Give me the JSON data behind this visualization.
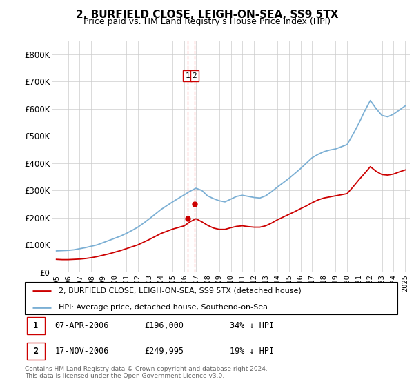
{
  "title": "2, BURFIELD CLOSE, LEIGH-ON-SEA, SS9 5TX",
  "subtitle": "Price paid vs. HM Land Registry's House Price Index (HPI)",
  "legend_line1": "2, BURFIELD CLOSE, LEIGH-ON-SEA, SS9 5TX (detached house)",
  "legend_line2": "HPI: Average price, detached house, Southend-on-Sea",
  "footer": "Contains HM Land Registry data © Crown copyright and database right 2024.\nThis data is licensed under the Open Government Licence v3.0.",
  "transactions": [
    {
      "label": "1",
      "date": "07-APR-2006",
      "price": "£196,000",
      "hpi_diff": "34% ↓ HPI",
      "year": 2006.27,
      "value": 196000
    },
    {
      "label": "2",
      "date": "17-NOV-2006",
      "price": "£249,995",
      "hpi_diff": "19% ↓ HPI",
      "year": 2006.88,
      "value": 249995
    }
  ],
  "hpi_data_years": [
    1995.0,
    1995.5,
    1996.0,
    1996.5,
    1997.0,
    1997.5,
    1998.0,
    1998.5,
    1999.0,
    1999.5,
    2000.0,
    2000.5,
    2001.0,
    2001.5,
    2002.0,
    2002.5,
    2003.0,
    2003.5,
    2004.0,
    2004.5,
    2005.0,
    2005.5,
    2006.0,
    2006.5,
    2007.0,
    2007.5,
    2008.0,
    2008.5,
    2009.0,
    2009.5,
    2010.0,
    2010.5,
    2011.0,
    2011.5,
    2012.0,
    2012.5,
    2013.0,
    2013.5,
    2014.0,
    2014.5,
    2015.0,
    2015.5,
    2016.0,
    2016.5,
    2017.0,
    2017.5,
    2018.0,
    2018.5,
    2019.0,
    2019.5,
    2020.0,
    2020.5,
    2021.0,
    2021.5,
    2022.0,
    2022.5,
    2023.0,
    2023.5,
    2024.0,
    2024.5,
    2025.0
  ],
  "hpi_values": [
    78000,
    79000,
    80000,
    82000,
    86000,
    90000,
    95000,
    100000,
    108000,
    116000,
    124000,
    132000,
    142000,
    153000,
    165000,
    180000,
    196000,
    213000,
    230000,
    244000,
    258000,
    271000,
    284000,
    297000,
    308000,
    300000,
    280000,
    270000,
    262000,
    258000,
    268000,
    278000,
    282000,
    278000,
    274000,
    272000,
    280000,
    295000,
    312000,
    328000,
    344000,
    362000,
    380000,
    400000,
    420000,
    432000,
    442000,
    448000,
    452000,
    460000,
    468000,
    505000,
    545000,
    590000,
    630000,
    600000,
    575000,
    570000,
    580000,
    595000,
    610000
  ],
  "red_data_years": [
    1995.0,
    1995.5,
    1996.0,
    1996.5,
    1997.0,
    1997.5,
    1998.0,
    1998.5,
    1999.0,
    1999.5,
    2000.0,
    2000.5,
    2001.0,
    2001.5,
    2002.0,
    2002.5,
    2003.0,
    2003.5,
    2004.0,
    2004.5,
    2005.0,
    2005.5,
    2006.0,
    2006.5,
    2007.0,
    2007.5,
    2008.0,
    2008.5,
    2009.0,
    2009.5,
    2010.0,
    2010.5,
    2011.0,
    2011.5,
    2012.0,
    2012.5,
    2013.0,
    2013.5,
    2014.0,
    2014.5,
    2015.0,
    2015.5,
    2016.0,
    2016.5,
    2017.0,
    2017.5,
    2018.0,
    2018.5,
    2019.0,
    2019.5,
    2020.0,
    2020.5,
    2021.0,
    2021.5,
    2022.0,
    2022.5,
    2023.0,
    2023.5,
    2024.0,
    2024.5,
    2025.0
  ],
  "red_values": [
    47000,
    46000,
    46000,
    47000,
    48000,
    50000,
    53000,
    57000,
    62000,
    67000,
    73000,
    79000,
    86000,
    93000,
    100000,
    110000,
    120000,
    131000,
    142000,
    150000,
    158000,
    164000,
    170000,
    185000,
    196000,
    185000,
    172000,
    162000,
    157000,
    157000,
    163000,
    168000,
    170000,
    167000,
    165000,
    165000,
    170000,
    180000,
    192000,
    202000,
    212000,
    222000,
    233000,
    243000,
    255000,
    265000,
    272000,
    276000,
    280000,
    284000,
    288000,
    312000,
    338000,
    362000,
    387000,
    370000,
    358000,
    356000,
    360000,
    368000,
    375000
  ],
  "ylim": [
    0,
    850000
  ],
  "yticks": [
    0,
    100000,
    200000,
    300000,
    400000,
    500000,
    600000,
    700000,
    800000
  ],
  "ytick_labels": [
    "£0",
    "£100K",
    "£200K",
    "£300K",
    "£400K",
    "£500K",
    "£600K",
    "£700K",
    "£800K"
  ],
  "xtick_years": [
    1995,
    1996,
    1997,
    1998,
    1999,
    2000,
    2001,
    2002,
    2003,
    2004,
    2005,
    2006,
    2007,
    2008,
    2009,
    2010,
    2011,
    2012,
    2013,
    2014,
    2015,
    2016,
    2017,
    2018,
    2019,
    2020,
    2021,
    2022,
    2023,
    2024,
    2025
  ],
  "line_color_red": "#cc0000",
  "line_color_blue": "#7bafd4",
  "marker_box_color": "#cc0000",
  "grid_color": "#cccccc",
  "background_color": "#ffffff",
  "dashed_line_color": "#ffaaaa",
  "title_fontsize": 11,
  "subtitle_fontsize": 9
}
